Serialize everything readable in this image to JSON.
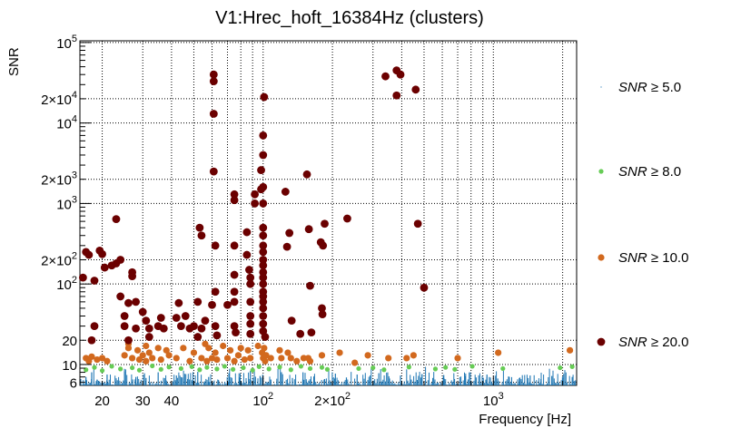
{
  "chart_data": {
    "type": "scatter",
    "title": "V1:Hrec_hoft_16384Hz (clusters)",
    "xlabel": "Frequency [Hz]",
    "ylabel": "SNR",
    "x_scale": "log",
    "y_scale": "log",
    "xlim": [
      16,
      2300
    ],
    "ylim": [
      5.5,
      105000
    ],
    "grid": true,
    "legend_position": "right",
    "x_ticks": [
      {
        "value": 20,
        "label": "20"
      },
      {
        "value": 30,
        "label": "30"
      },
      {
        "value": 40,
        "label": "40"
      },
      {
        "value": 100,
        "label": "10^2"
      },
      {
        "value": 200,
        "label": "2×10^2"
      },
      {
        "value": 1000,
        "label": "10^3"
      }
    ],
    "y_ticks": [
      {
        "value": 6,
        "label": "6"
      },
      {
        "value": 10,
        "label": "10"
      },
      {
        "value": 20,
        "label": "20"
      },
      {
        "value": 100,
        "label": "10^2"
      },
      {
        "value": 200,
        "label": "2×10^2"
      },
      {
        "value": 1000,
        "label": "10^3"
      },
      {
        "value": 2000,
        "label": "2×10^3"
      },
      {
        "value": 10000,
        "label": "10^4"
      },
      {
        "value": 20000,
        "label": "2×10^4"
      },
      {
        "value": 100000,
        "label": "10^5"
      }
    ],
    "legend": [
      {
        "var": "SNR",
        "op": "≥",
        "value": "5.0",
        "color": "#1f77b4"
      },
      {
        "var": "SNR",
        "op": "≥",
        "value": "8.0",
        "color": "#66cc55"
      },
      {
        "var": "SNR",
        "op": "≥",
        "value": "10.0",
        "color": "#d2691e"
      },
      {
        "var": "SNR",
        "op": "≥",
        "value": "20.0",
        "color": "#6b0000"
      }
    ],
    "series": [
      {
        "name": "SNR ≥ 5.0",
        "color": "#1f77b4",
        "marker": "dot",
        "density": "dense band across all frequencies from SNR 5 to ~9",
        "points": [
          [
            17,
            7
          ],
          [
            18,
            8
          ],
          [
            19,
            6.5
          ],
          [
            21,
            7.5
          ],
          [
            23,
            6.2
          ],
          [
            25,
            8.2
          ],
          [
            28,
            7
          ],
          [
            31,
            6.8
          ],
          [
            35,
            8
          ],
          [
            38,
            6.3
          ],
          [
            42,
            7.3
          ],
          [
            47,
            6.6
          ],
          [
            52,
            8.1
          ],
          [
            58,
            7
          ],
          [
            64,
            6.4
          ],
          [
            71,
            7.8
          ],
          [
            79,
            6.9
          ],
          [
            88,
            8.3
          ],
          [
            97,
            7.2
          ],
          [
            108,
            6.5
          ],
          [
            120,
            7.9
          ],
          [
            134,
            6.8
          ],
          [
            149,
            8
          ],
          [
            166,
            7.1
          ],
          [
            185,
            6.6
          ],
          [
            206,
            7.7
          ],
          [
            230,
            6.9
          ],
          [
            256,
            7.5
          ],
          [
            285,
            6.4
          ],
          [
            318,
            7.8
          ],
          [
            354,
            6.7
          ],
          [
            395,
            7.3
          ],
          [
            440,
            6.5
          ],
          [
            490,
            7.6
          ],
          [
            546,
            6.8
          ],
          [
            609,
            7.4
          ],
          [
            678,
            6.6
          ],
          [
            756,
            7.2
          ],
          [
            842,
            6.9
          ],
          [
            938,
            7.5
          ],
          [
            1045,
            6.7
          ],
          [
            1164,
            7.1
          ],
          [
            1297,
            6.8
          ],
          [
            1445,
            7.3
          ],
          [
            1610,
            6.6
          ],
          [
            1794,
            7.2
          ],
          [
            1999,
            6.9
          ],
          [
            2200,
            7
          ]
        ]
      },
      {
        "name": "SNR ≥ 8.0",
        "color": "#66cc55",
        "marker": "circle",
        "points": [
          [
            17,
            8.6
          ],
          [
            18.5,
            9.2
          ],
          [
            20,
            8.4
          ],
          [
            22,
            9.5
          ],
          [
            24,
            8.8
          ],
          [
            27,
            9.1
          ],
          [
            29,
            8.5
          ],
          [
            33,
            9.6
          ],
          [
            36,
            8.7
          ],
          [
            39,
            9.3
          ],
          [
            44,
            8.9
          ],
          [
            49,
            9.4
          ],
          [
            53,
            8.6
          ],
          [
            57,
            9.2
          ],
          [
            63,
            8.8
          ],
          [
            68,
            9.5
          ],
          [
            74,
            8.7
          ],
          [
            82,
            9.1
          ],
          [
            90,
            8.5
          ],
          [
            96,
            9.4
          ],
          [
            106,
            8.8
          ],
          [
            118,
            9.3
          ],
          [
            132,
            8.6
          ],
          [
            146,
            9.5
          ],
          [
            160,
            8.9
          ],
          [
            180,
            9.2
          ],
          [
            190,
            8.7
          ],
          [
            260,
            8.9
          ],
          [
            300,
            9.1
          ],
          [
            335,
            8.6
          ],
          [
            430,
            9.3
          ],
          [
            560,
            8.8
          ],
          [
            620,
            9.2
          ],
          [
            680,
            8.7
          ],
          [
            810,
            9.5
          ],
          [
            1100,
            8.9
          ],
          [
            1950,
            9.1
          ],
          [
            2200,
            9.4
          ]
        ]
      },
      {
        "name": "SNR ≥ 10.0",
        "color": "#d2691e",
        "marker": "circle",
        "points": [
          [
            17,
            12
          ],
          [
            17.5,
            11
          ],
          [
            18,
            12.5
          ],
          [
            19,
            11.5
          ],
          [
            20,
            12
          ],
          [
            21,
            11
          ],
          [
            25,
            13
          ],
          [
            26,
            16
          ],
          [
            26,
            18
          ],
          [
            27,
            12
          ],
          [
            28.5,
            15
          ],
          [
            29,
            11.5
          ],
          [
            30,
            13
          ],
          [
            31,
            17
          ],
          [
            31,
            11
          ],
          [
            32,
            14
          ],
          [
            33,
            12
          ],
          [
            35,
            16
          ],
          [
            36,
            11.5
          ],
          [
            38,
            15
          ],
          [
            39,
            13
          ],
          [
            42,
            12
          ],
          [
            45,
            16
          ],
          [
            48,
            11
          ],
          [
            50,
            14
          ],
          [
            54,
            12
          ],
          [
            56,
            18
          ],
          [
            57,
            11
          ],
          [
            58,
            16
          ],
          [
            60,
            12
          ],
          [
            62,
            14
          ],
          [
            63,
            11.5
          ],
          [
            67,
            17
          ],
          [
            70,
            12
          ],
          [
            72,
            15
          ],
          [
            75,
            11
          ],
          [
            78,
            13
          ],
          [
            80,
            16
          ],
          [
            83,
            11.5
          ],
          [
            86,
            15
          ],
          [
            88,
            12
          ],
          [
            95,
            17
          ],
          [
            99,
            14
          ],
          [
            100,
            12
          ],
          [
            101,
            16
          ],
          [
            102,
            11
          ],
          [
            103,
            13
          ],
          [
            108,
            12
          ],
          [
            118,
            15
          ],
          [
            120,
            12
          ],
          [
            128,
            14
          ],
          [
            132,
            12
          ],
          [
            140,
            11
          ],
          [
            150,
            12
          ],
          [
            157,
            12
          ],
          [
            160,
            11
          ],
          [
            180,
            13
          ],
          [
            215,
            14
          ],
          [
            250,
            10.5
          ],
          [
            285,
            13
          ],
          [
            350,
            12
          ],
          [
            420,
            12
          ],
          [
            450,
            13
          ],
          [
            700,
            12
          ],
          [
            1050,
            14
          ],
          [
            2150,
            15
          ]
        ]
      },
      {
        "name": "SNR ≥ 20.0",
        "color": "#6b0000",
        "marker": "circle",
        "points": [
          [
            16.5,
            120
          ],
          [
            17,
            250
          ],
          [
            17.5,
            230
          ],
          [
            18,
            20
          ],
          [
            18.5,
            30
          ],
          [
            18.5,
            110
          ],
          [
            19.5,
            260
          ],
          [
            20,
            235
          ],
          [
            20.5,
            160
          ],
          [
            22,
            170
          ],
          [
            23,
            640
          ],
          [
            23,
            180
          ],
          [
            24,
            200
          ],
          [
            24,
            70
          ],
          [
            25,
            40
          ],
          [
            25,
            30
          ],
          [
            26,
            58
          ],
          [
            26,
            20
          ],
          [
            27,
            140
          ],
          [
            27,
            125
          ],
          [
            28,
            60
          ],
          [
            28,
            28
          ],
          [
            30,
            45
          ],
          [
            31,
            35
          ],
          [
            32,
            28
          ],
          [
            32,
            22
          ],
          [
            35,
            30
          ],
          [
            36,
            38
          ],
          [
            37,
            28
          ],
          [
            42,
            38
          ],
          [
            43,
            58
          ],
          [
            44,
            30
          ],
          [
            46,
            40
          ],
          [
            48,
            28
          ],
          [
            50,
            30
          ],
          [
            52,
            60
          ],
          [
            52,
            22
          ],
          [
            53,
            500
          ],
          [
            54,
            400
          ],
          [
            54,
            28
          ],
          [
            56,
            35
          ],
          [
            60,
            55
          ],
          [
            61,
            40000
          ],
          [
            61,
            33000
          ],
          [
            61,
            13000
          ],
          [
            61,
            2500
          ],
          [
            62,
            300
          ],
          [
            62,
            80
          ],
          [
            62,
            30
          ],
          [
            63,
            23
          ],
          [
            70,
            55
          ],
          [
            75,
            1300
          ],
          [
            75,
            1100
          ],
          [
            75,
            300
          ],
          [
            75,
            130
          ],
          [
            75,
            80
          ],
          [
            75,
            60
          ],
          [
            75,
            30
          ],
          [
            76,
            25
          ],
          [
            85,
            230
          ],
          [
            85,
            440
          ],
          [
            87,
            150
          ],
          [
            88,
            120
          ],
          [
            88,
            100
          ],
          [
            88,
            60
          ],
          [
            88,
            40
          ],
          [
            88,
            32
          ],
          [
            88,
            24
          ],
          [
            92,
            1300
          ],
          [
            92,
            1000
          ],
          [
            98,
            2600
          ],
          [
            98,
            1500
          ],
          [
            100,
            7000
          ],
          [
            100,
            4000
          ],
          [
            100,
            1600
          ],
          [
            100,
            1000
          ],
          [
            100,
            500
          ],
          [
            100,
            400
          ],
          [
            100,
            300
          ],
          [
            100,
            250
          ],
          [
            100,
            200
          ],
          [
            100,
            170
          ],
          [
            100,
            140
          ],
          [
            100,
            120
          ],
          [
            100,
            100
          ],
          [
            100,
            80
          ],
          [
            100,
            70
          ],
          [
            100,
            60
          ],
          [
            100,
            50
          ],
          [
            100,
            40
          ],
          [
            100,
            32
          ],
          [
            100,
            26
          ],
          [
            101,
            21000
          ],
          [
            102,
            22
          ],
          [
            125,
            1400
          ],
          [
            127,
            290
          ],
          [
            130,
            430
          ],
          [
            133,
            35
          ],
          [
            145,
            24
          ],
          [
            155,
            2300
          ],
          [
            158,
            480
          ],
          [
            160,
            95
          ],
          [
            162,
            25
          ],
          [
            178,
            330
          ],
          [
            180,
            50
          ],
          [
            181,
            42
          ],
          [
            182,
            300
          ],
          [
            185,
            560
          ],
          [
            232,
            650
          ],
          [
            340,
            38000
          ],
          [
            380,
            45000
          ],
          [
            380,
            22000
          ],
          [
            395,
            40000
          ],
          [
            460,
            26000
          ],
          [
            470,
            560
          ],
          [
            500,
            90
          ]
        ]
      }
    ]
  }
}
